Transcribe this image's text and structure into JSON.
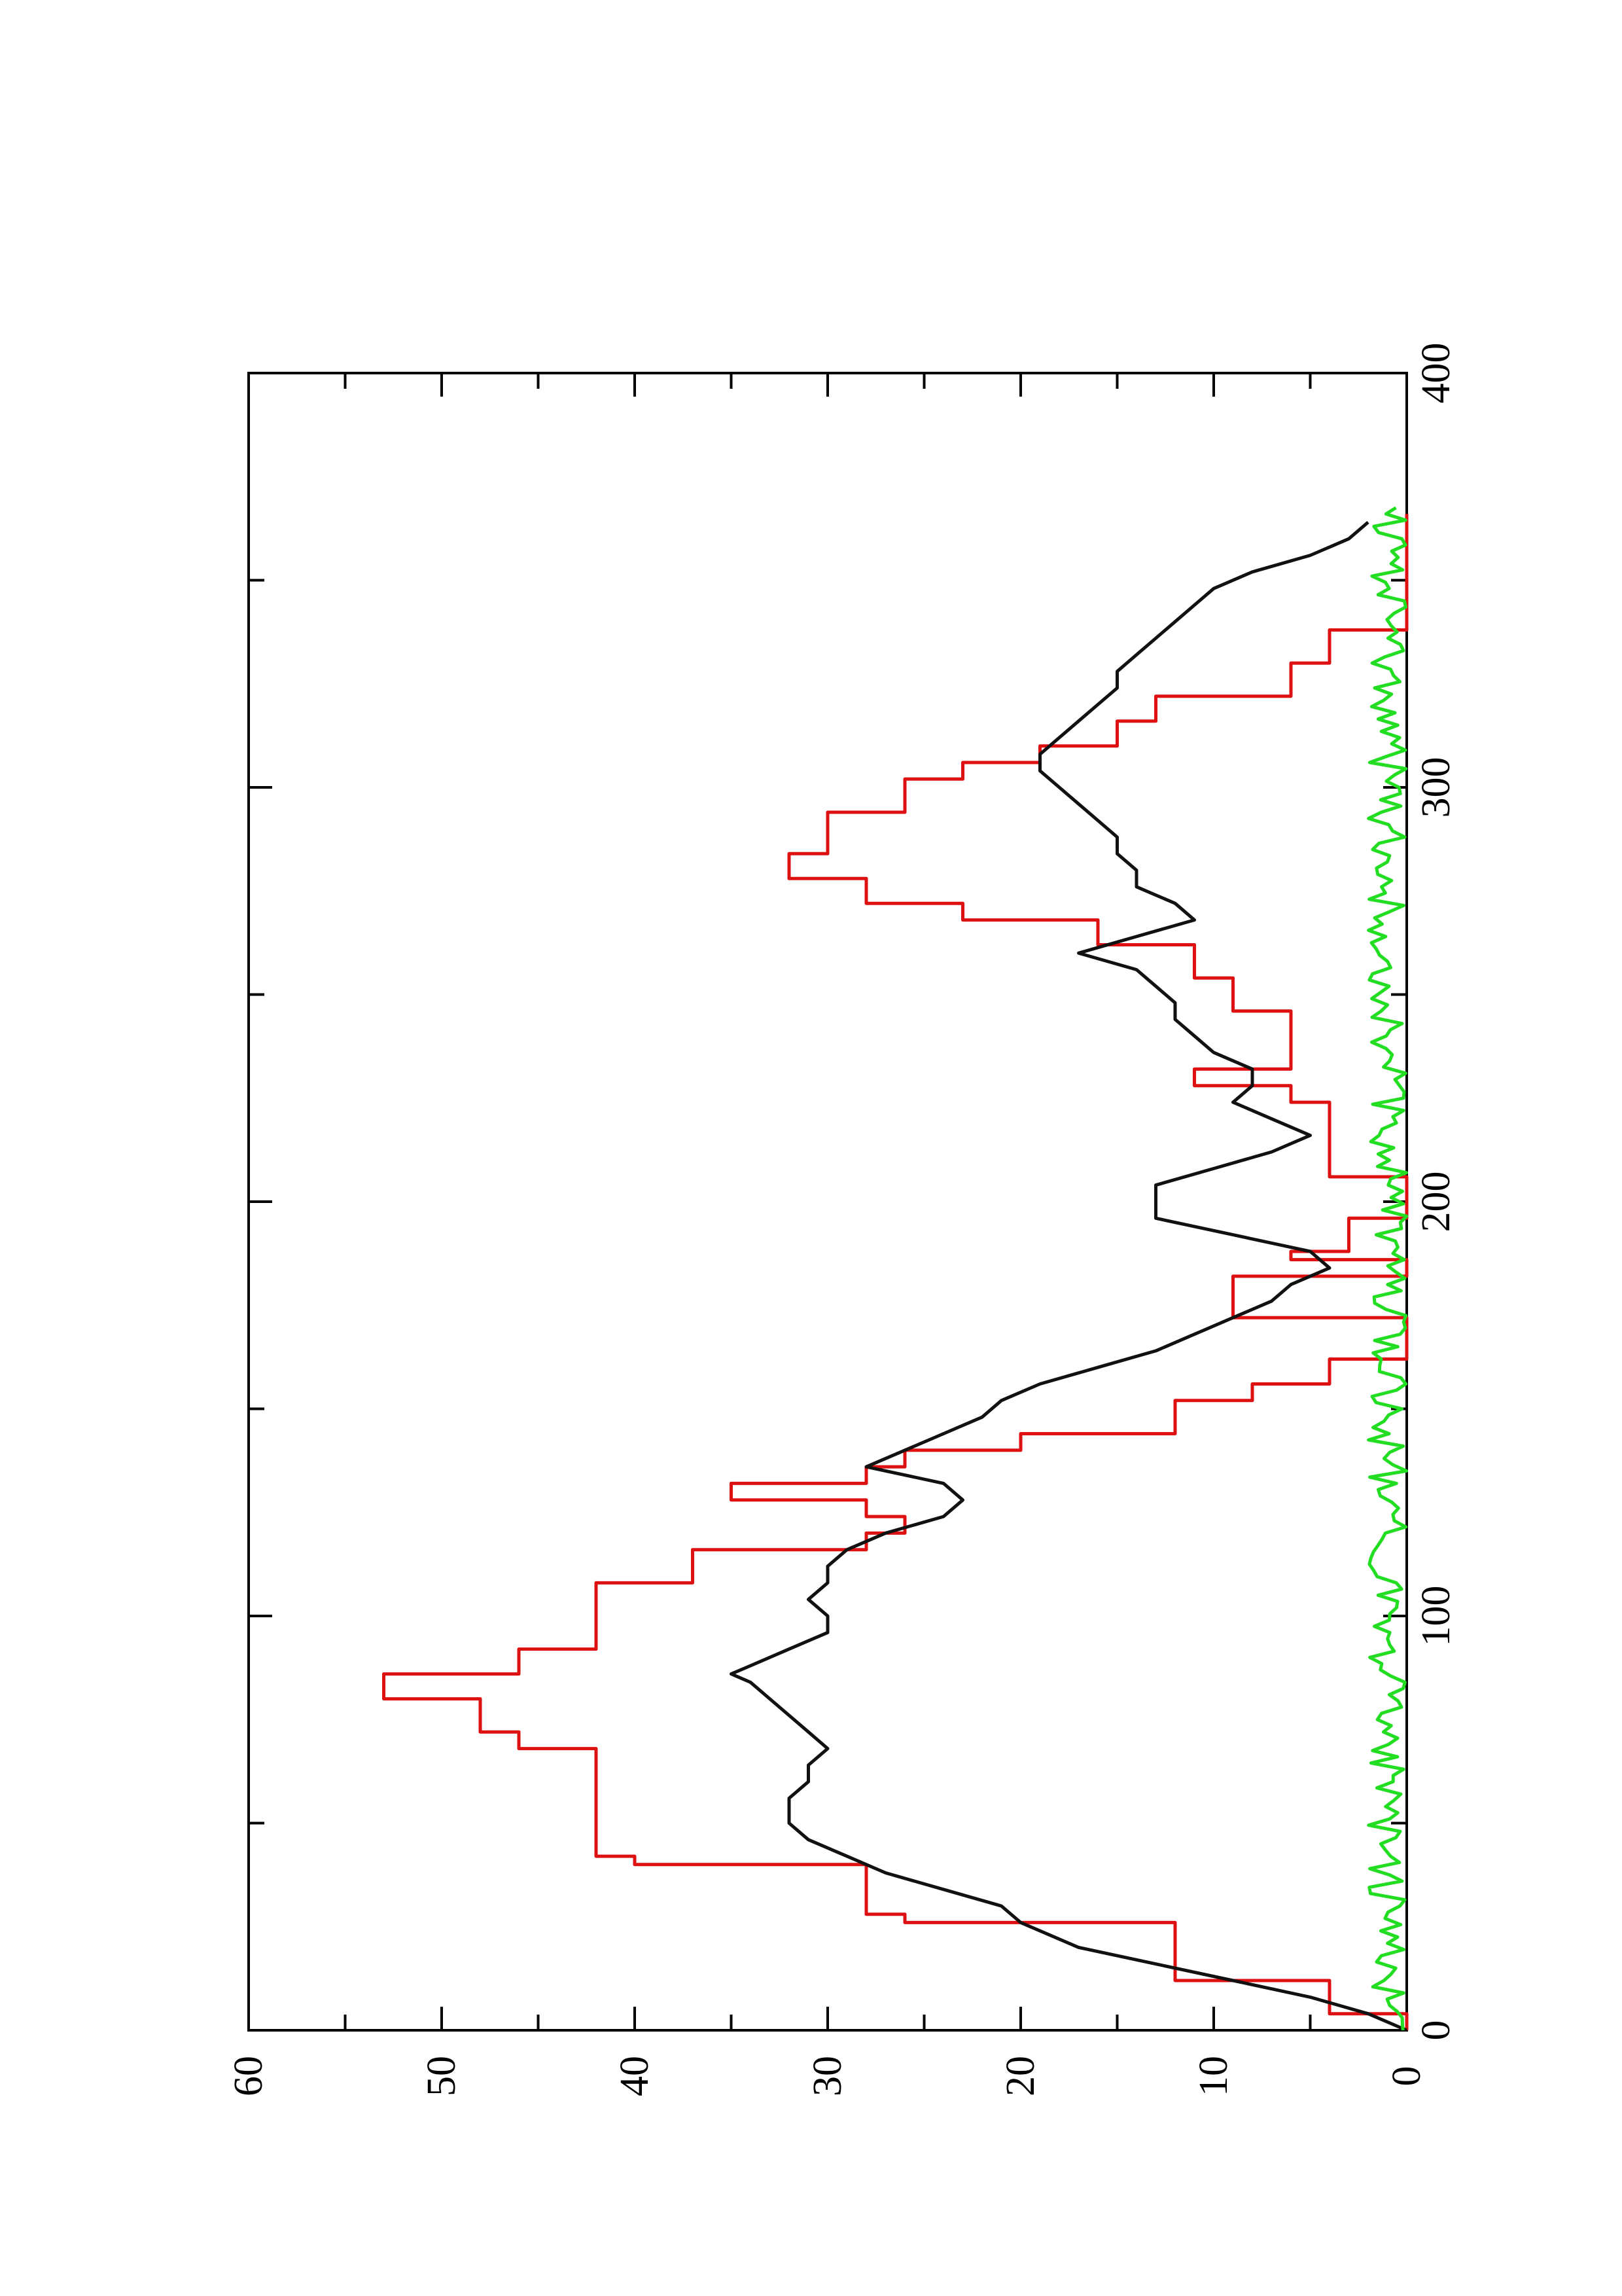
{
  "chart_data": {
    "type": "line",
    "orientation": "rotated-90-ccw",
    "title": "",
    "xlabel": "",
    "ylabel": "",
    "xlim": [
      0,
      400
    ],
    "ylim": [
      0,
      60
    ],
    "x_ticks": [
      0,
      100,
      200,
      300,
      400
    ],
    "y_ticks": [
      0,
      10,
      20,
      30,
      40,
      50,
      60
    ],
    "x_tick_labels": [
      "0",
      "100",
      "200",
      "300",
      "400"
    ],
    "y_tick_labels": [
      "0",
      "10",
      "20",
      "30",
      "40",
      "50",
      "60"
    ],
    "grid": false,
    "legend": "none",
    "series": [
      {
        "color": "#dd1111",
        "line_shape": "hv",
        "x": [
          0,
          4,
          4,
          12,
          12,
          26,
          26,
          28,
          28,
          40,
          40,
          42,
          42,
          42,
          52,
          52,
          68,
          68,
          72,
          72,
          80,
          80,
          86,
          86,
          92,
          92,
          98,
          98,
          108,
          108,
          116,
          116,
          120,
          120,
          124,
          124,
          128,
          128,
          132,
          132,
          136,
          136,
          140,
          140,
          144,
          144,
          152,
          152,
          156,
          156,
          162,
          162,
          172,
          172,
          176,
          176,
          182,
          182,
          186,
          186,
          188,
          188,
          196,
          196,
          206,
          206,
          212,
          212,
          216,
          216,
          218,
          218,
          224,
          224,
          228,
          228,
          232,
          232,
          238,
          238,
          246,
          246,
          254,
          254,
          262,
          262,
          268,
          268,
          272,
          272,
          278,
          278,
          284,
          284,
          294,
          294,
          302,
          302,
          306,
          306,
          310,
          310,
          316,
          316,
          322,
          322,
          330,
          330,
          338,
          338,
          348,
          348,
          352,
          352,
          358,
          358,
          366
        ],
        "y": [
          0,
          0,
          4,
          4,
          12,
          12,
          26,
          26,
          28,
          28,
          40,
          40,
          42,
          42,
          42,
          42,
          42,
          46,
          46,
          48,
          48,
          53,
          53,
          46,
          46,
          42,
          42,
          42,
          42,
          37,
          37,
          28,
          28,
          26,
          26,
          28,
          28,
          35,
          35,
          28,
          28,
          26,
          26,
          20,
          20,
          12,
          12,
          8,
          8,
          4,
          4,
          0,
          0,
          9,
          9,
          9,
          9,
          0,
          0,
          6,
          6,
          3,
          3,
          0,
          0,
          4,
          4,
          4,
          4,
          4,
          4,
          4,
          4,
          6,
          6,
          11,
          11,
          6,
          6,
          6,
          6,
          9,
          9,
          11,
          11,
          16,
          16,
          23,
          23,
          28,
          28,
          32,
          32,
          30,
          30,
          26,
          26,
          23,
          23,
          19,
          19,
          15,
          15,
          13,
          13,
          6,
          6,
          4,
          4,
          0,
          0,
          0,
          0,
          0,
          0,
          0,
          0
        ]
      },
      {
        "color": "#111111",
        "line_shape": "linear",
        "x": [
          0,
          4,
          8,
          12,
          16,
          20,
          26,
          30,
          34,
          38,
          42,
          46,
          50,
          52,
          56,
          60,
          64,
          68,
          72,
          76,
          80,
          84,
          86,
          88,
          92,
          96,
          100,
          104,
          108,
          112,
          116,
          120,
          124,
          128,
          132,
          136,
          140,
          144,
          148,
          152,
          156,
          160,
          164,
          168,
          172,
          176,
          180,
          184,
          188,
          192,
          196,
          200,
          204,
          208,
          212,
          216,
          220,
          224,
          228,
          232,
          236,
          240,
          244,
          248,
          252,
          256,
          260,
          264,
          268,
          272,
          276,
          280,
          284,
          288,
          292,
          296,
          300,
          304,
          308,
          312,
          316,
          320,
          324,
          328,
          332,
          336,
          340,
          344,
          348,
          352,
          356,
          360,
          364
        ],
        "y": [
          0,
          2,
          5,
          9,
          13,
          17,
          20,
          21,
          24,
          27,
          29,
          31,
          32,
          32,
          32,
          31,
          31,
          30,
          31,
          32,
          33,
          34,
          35,
          34,
          32,
          30,
          30,
          31,
          30,
          30,
          29,
          27,
          24,
          23,
          24,
          28,
          26,
          24,
          22,
          21,
          19,
          16,
          13,
          11,
          9,
          7,
          6,
          4,
          5,
          9,
          13,
          13,
          13,
          10,
          7,
          5,
          7,
          9,
          8,
          8,
          10,
          11,
          12,
          12,
          13,
          14,
          17,
          14,
          11,
          12,
          14,
          14,
          15,
          15,
          16,
          17,
          18,
          19,
          19,
          18,
          17,
          16,
          15,
          15,
          14,
          13,
          12,
          11,
          10,
          8,
          5,
          3,
          2
        ]
      },
      {
        "color": "#22dd22",
        "line_shape": "linear",
        "noise": true,
        "x_range": [
          0,
          368
        ],
        "y_approx_range": [
          0,
          2
        ]
      }
    ]
  }
}
